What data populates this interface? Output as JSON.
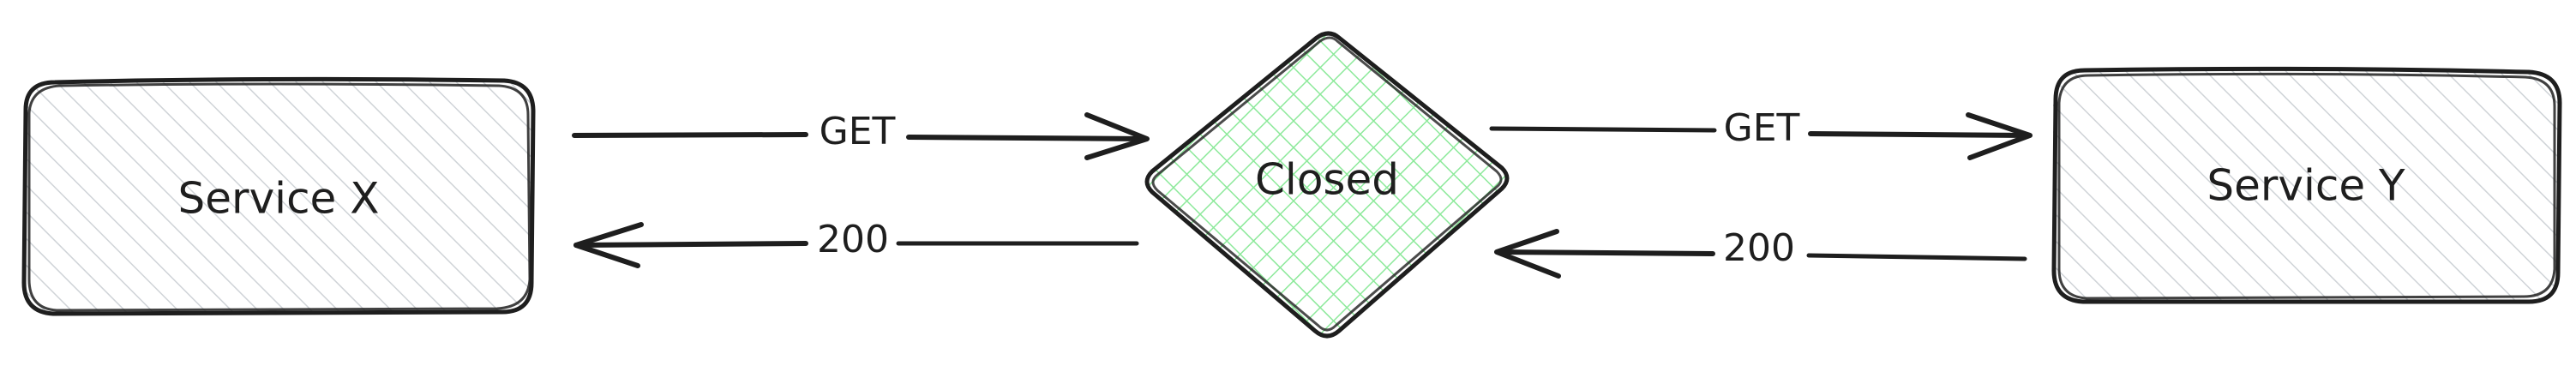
{
  "nodes": {
    "service_x": {
      "label": "Service X"
    },
    "breaker": {
      "label": "Closed"
    },
    "service_y": {
      "label": "Service Y"
    }
  },
  "edges": {
    "x_to_breaker_request": {
      "label": "GET"
    },
    "breaker_to_x_response": {
      "label": "200"
    },
    "breaker_to_y_request": {
      "label": "GET"
    },
    "y_to_breaker_response": {
      "label": "200"
    }
  },
  "colors": {
    "stroke": "#1e1e1e",
    "service_fill": "#e9ecef",
    "breaker_fill": "#b2f2bb",
    "background": "#ffffff"
  }
}
